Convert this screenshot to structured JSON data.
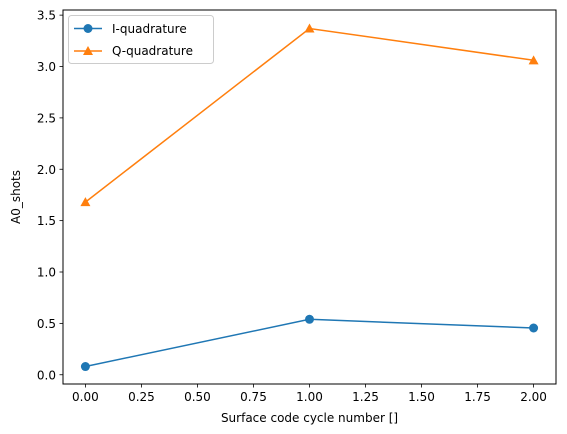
{
  "chart_data": {
    "type": "line",
    "title": "",
    "xlabel": "Surface code cycle number []",
    "ylabel": "A0_shots",
    "x": [
      0,
      1,
      2
    ],
    "xlim": [
      -0.1,
      2.1
    ],
    "ylim": [
      -0.09,
      3.55
    ],
    "xticks": [
      "0.00",
      "0.25",
      "0.50",
      "0.75",
      "1.00",
      "1.25",
      "1.50",
      "1.75",
      "2.00"
    ],
    "yticks": [
      "0.0",
      "0.5",
      "1.0",
      "1.5",
      "2.0",
      "2.5",
      "3.0",
      "3.5"
    ],
    "grid": false,
    "legend_position": "top-left",
    "series": [
      {
        "name": "I-quadrature",
        "values": [
          0.08,
          0.54,
          0.455
        ],
        "color": "#1f77b4",
        "marker": "circle"
      },
      {
        "name": "Q-quadrature",
        "values": [
          1.68,
          3.37,
          3.06
        ],
        "color": "#ff7f0e",
        "marker": "triangle"
      }
    ]
  }
}
